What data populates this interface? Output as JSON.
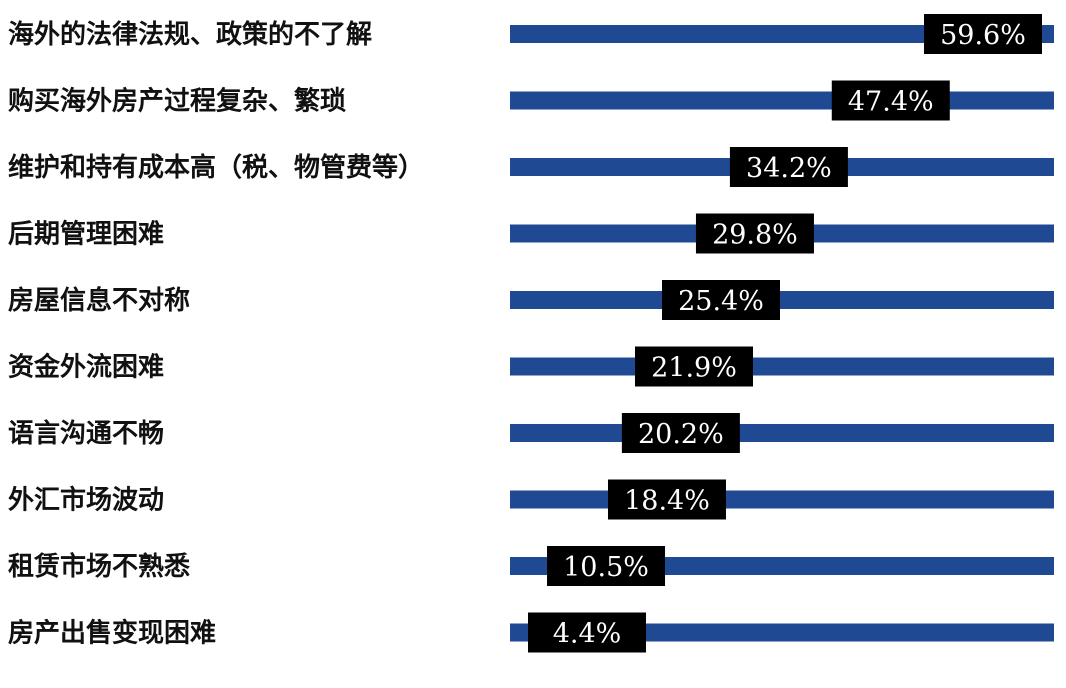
{
  "colors": {
    "bar": "#1f4a93",
    "label_box": "#000000",
    "label_text": "#ffffff",
    "category_text": "#111111"
  },
  "chart_data": {
    "type": "bar",
    "orientation": "horizontal",
    "categories": [
      "海外的法律法规、政策的不了解",
      "购买海外房产过程复杂、繁琐",
      "维护和持有成本高（税、物管费等）",
      "后期管理困难",
      "房屋信息不对称",
      "资金外流困难",
      "语言沟通不畅",
      "外汇市场波动",
      "租赁市场不熟悉",
      "房产出售变现困难"
    ],
    "values": [
      59.6,
      47.4,
      34.2,
      29.8,
      25.4,
      21.9,
      20.2,
      18.4,
      10.5,
      4.4
    ],
    "value_labels": [
      "59.6%",
      "47.4%",
      "34.2%",
      "29.8%",
      "25.4%",
      "21.9%",
      "20.2%",
      "18.4%",
      "10.5%",
      "4.4%"
    ],
    "unit": "%",
    "xlim": [
      0,
      60
    ],
    "title": "",
    "xlabel": "",
    "ylabel": "",
    "grid": false,
    "legend": "none"
  }
}
